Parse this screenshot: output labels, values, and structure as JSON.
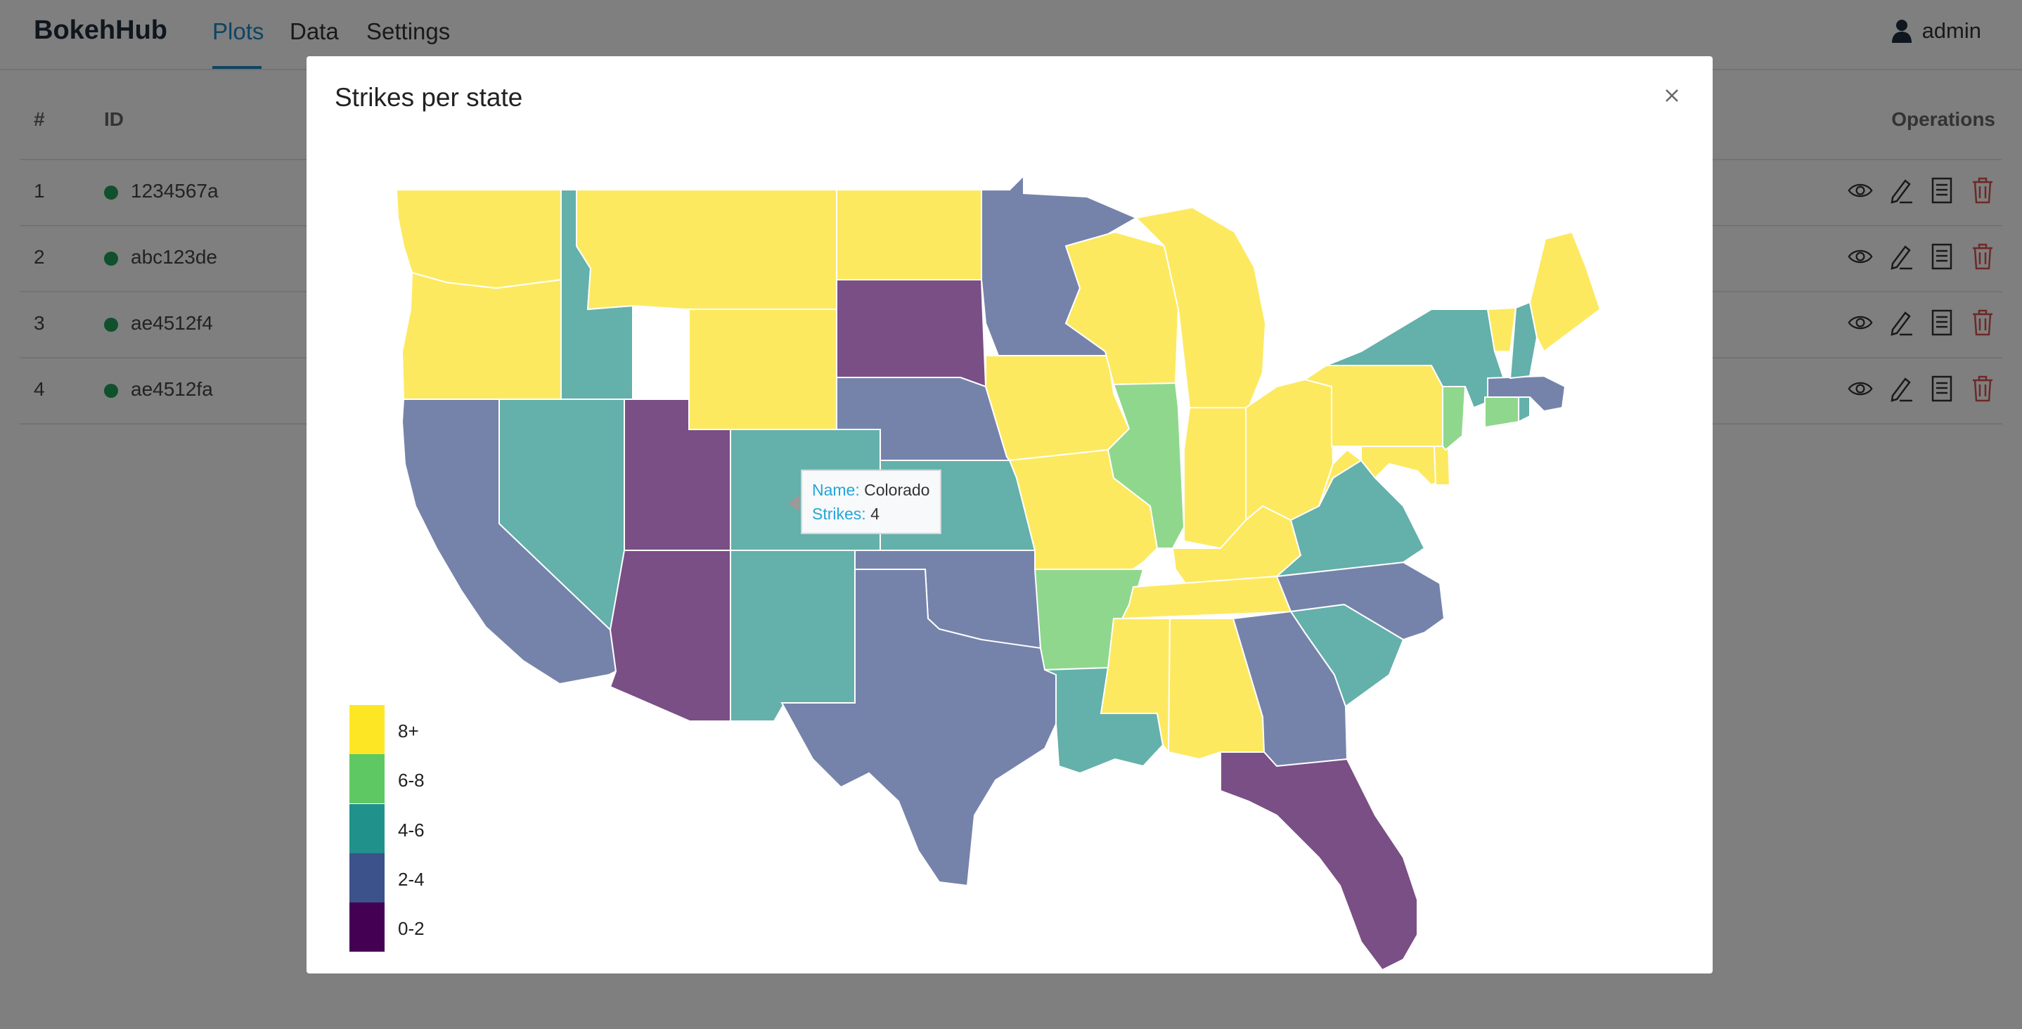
{
  "app": {
    "name": "BokehHub"
  },
  "nav": {
    "items": [
      "Plots",
      "Data",
      "Settings"
    ],
    "active": "Plots",
    "user": "admin"
  },
  "table": {
    "headers": {
      "index": "#",
      "id": "ID",
      "operations": "Operations"
    },
    "rows": [
      {
        "index": "1",
        "id": "1234567a"
      },
      {
        "index": "2",
        "id": "abc123de"
      },
      {
        "index": "3",
        "id": "ae4512f4"
      },
      {
        "index": "4",
        "id": "ae4512fa"
      }
    ],
    "op_icons": [
      "eye-icon",
      "edit-pencil-icon",
      "document-icon",
      "trash-icon"
    ]
  },
  "modal": {
    "title": "Strikes per state"
  },
  "tooltip": {
    "name_key": "Name:",
    "name_value": "Colorado",
    "strikes_key": "Strikes:",
    "strikes_value": "4"
  },
  "legend": [
    {
      "label": "8+",
      "color": "#fde725"
    },
    {
      "label": "6-8",
      "color": "#5ec962"
    },
    {
      "label": "4-6",
      "color": "#21918c"
    },
    {
      "label": "2-4",
      "color": "#3b528b"
    },
    {
      "label": "0-2",
      "color": "#440154"
    }
  ],
  "colors": {
    "accent": "#1e88c7",
    "status_ok": "#22a05a",
    "danger": "#d9534f"
  },
  "chart_data": {
    "type": "choropleth",
    "title": "Strikes per state",
    "bins": [
      "0-2",
      "2-4",
      "4-6",
      "6-8",
      "8+"
    ],
    "states": [
      {
        "name": "Washington",
        "bin": "8+"
      },
      {
        "name": "Oregon",
        "bin": "8+"
      },
      {
        "name": "California",
        "bin": "2-4"
      },
      {
        "name": "Idaho",
        "bin": "4-6"
      },
      {
        "name": "Nevada",
        "bin": "4-6"
      },
      {
        "name": "Montana",
        "bin": "8+"
      },
      {
        "name": "Wyoming",
        "bin": "8+"
      },
      {
        "name": "Utah",
        "bin": "0-2"
      },
      {
        "name": "Arizona",
        "bin": "0-2"
      },
      {
        "name": "Colorado",
        "bin": "4-6",
        "strikes": 4
      },
      {
        "name": "New Mexico",
        "bin": "4-6"
      },
      {
        "name": "North Dakota",
        "bin": "8+"
      },
      {
        "name": "South Dakota",
        "bin": "0-2"
      },
      {
        "name": "Nebraska",
        "bin": "2-4"
      },
      {
        "name": "Kansas",
        "bin": "4-6"
      },
      {
        "name": "Oklahoma",
        "bin": "2-4"
      },
      {
        "name": "Texas",
        "bin": "2-4"
      },
      {
        "name": "Minnesota",
        "bin": "2-4"
      },
      {
        "name": "Iowa",
        "bin": "8+"
      },
      {
        "name": "Missouri",
        "bin": "8+"
      },
      {
        "name": "Arkansas",
        "bin": "6-8"
      },
      {
        "name": "Louisiana",
        "bin": "4-6"
      },
      {
        "name": "Wisconsin",
        "bin": "8+"
      },
      {
        "name": "Illinois",
        "bin": "6-8"
      },
      {
        "name": "Michigan",
        "bin": "8+"
      },
      {
        "name": "Indiana",
        "bin": "8+"
      },
      {
        "name": "Ohio",
        "bin": "8+"
      },
      {
        "name": "Kentucky",
        "bin": "8+"
      },
      {
        "name": "Tennessee",
        "bin": "8+"
      },
      {
        "name": "Mississippi",
        "bin": "8+"
      },
      {
        "name": "Alabama",
        "bin": "8+"
      },
      {
        "name": "Georgia",
        "bin": "2-4"
      },
      {
        "name": "Florida",
        "bin": "0-2"
      },
      {
        "name": "South Carolina",
        "bin": "4-6"
      },
      {
        "name": "North Carolina",
        "bin": "2-4"
      },
      {
        "name": "Virginia",
        "bin": "4-6"
      },
      {
        "name": "West Virginia",
        "bin": "8+"
      },
      {
        "name": "Maryland",
        "bin": "8+"
      },
      {
        "name": "Delaware",
        "bin": "8+"
      },
      {
        "name": "Pennsylvania",
        "bin": "8+"
      },
      {
        "name": "New Jersey",
        "bin": "6-8"
      },
      {
        "name": "New York",
        "bin": "4-6"
      },
      {
        "name": "Connecticut",
        "bin": "6-8"
      },
      {
        "name": "Rhode Island",
        "bin": "4-6"
      },
      {
        "name": "Massachusetts",
        "bin": "2-4"
      },
      {
        "name": "Vermont",
        "bin": "8+"
      },
      {
        "name": "New Hampshire",
        "bin": "4-6"
      },
      {
        "name": "Maine",
        "bin": "8+"
      }
    ]
  }
}
